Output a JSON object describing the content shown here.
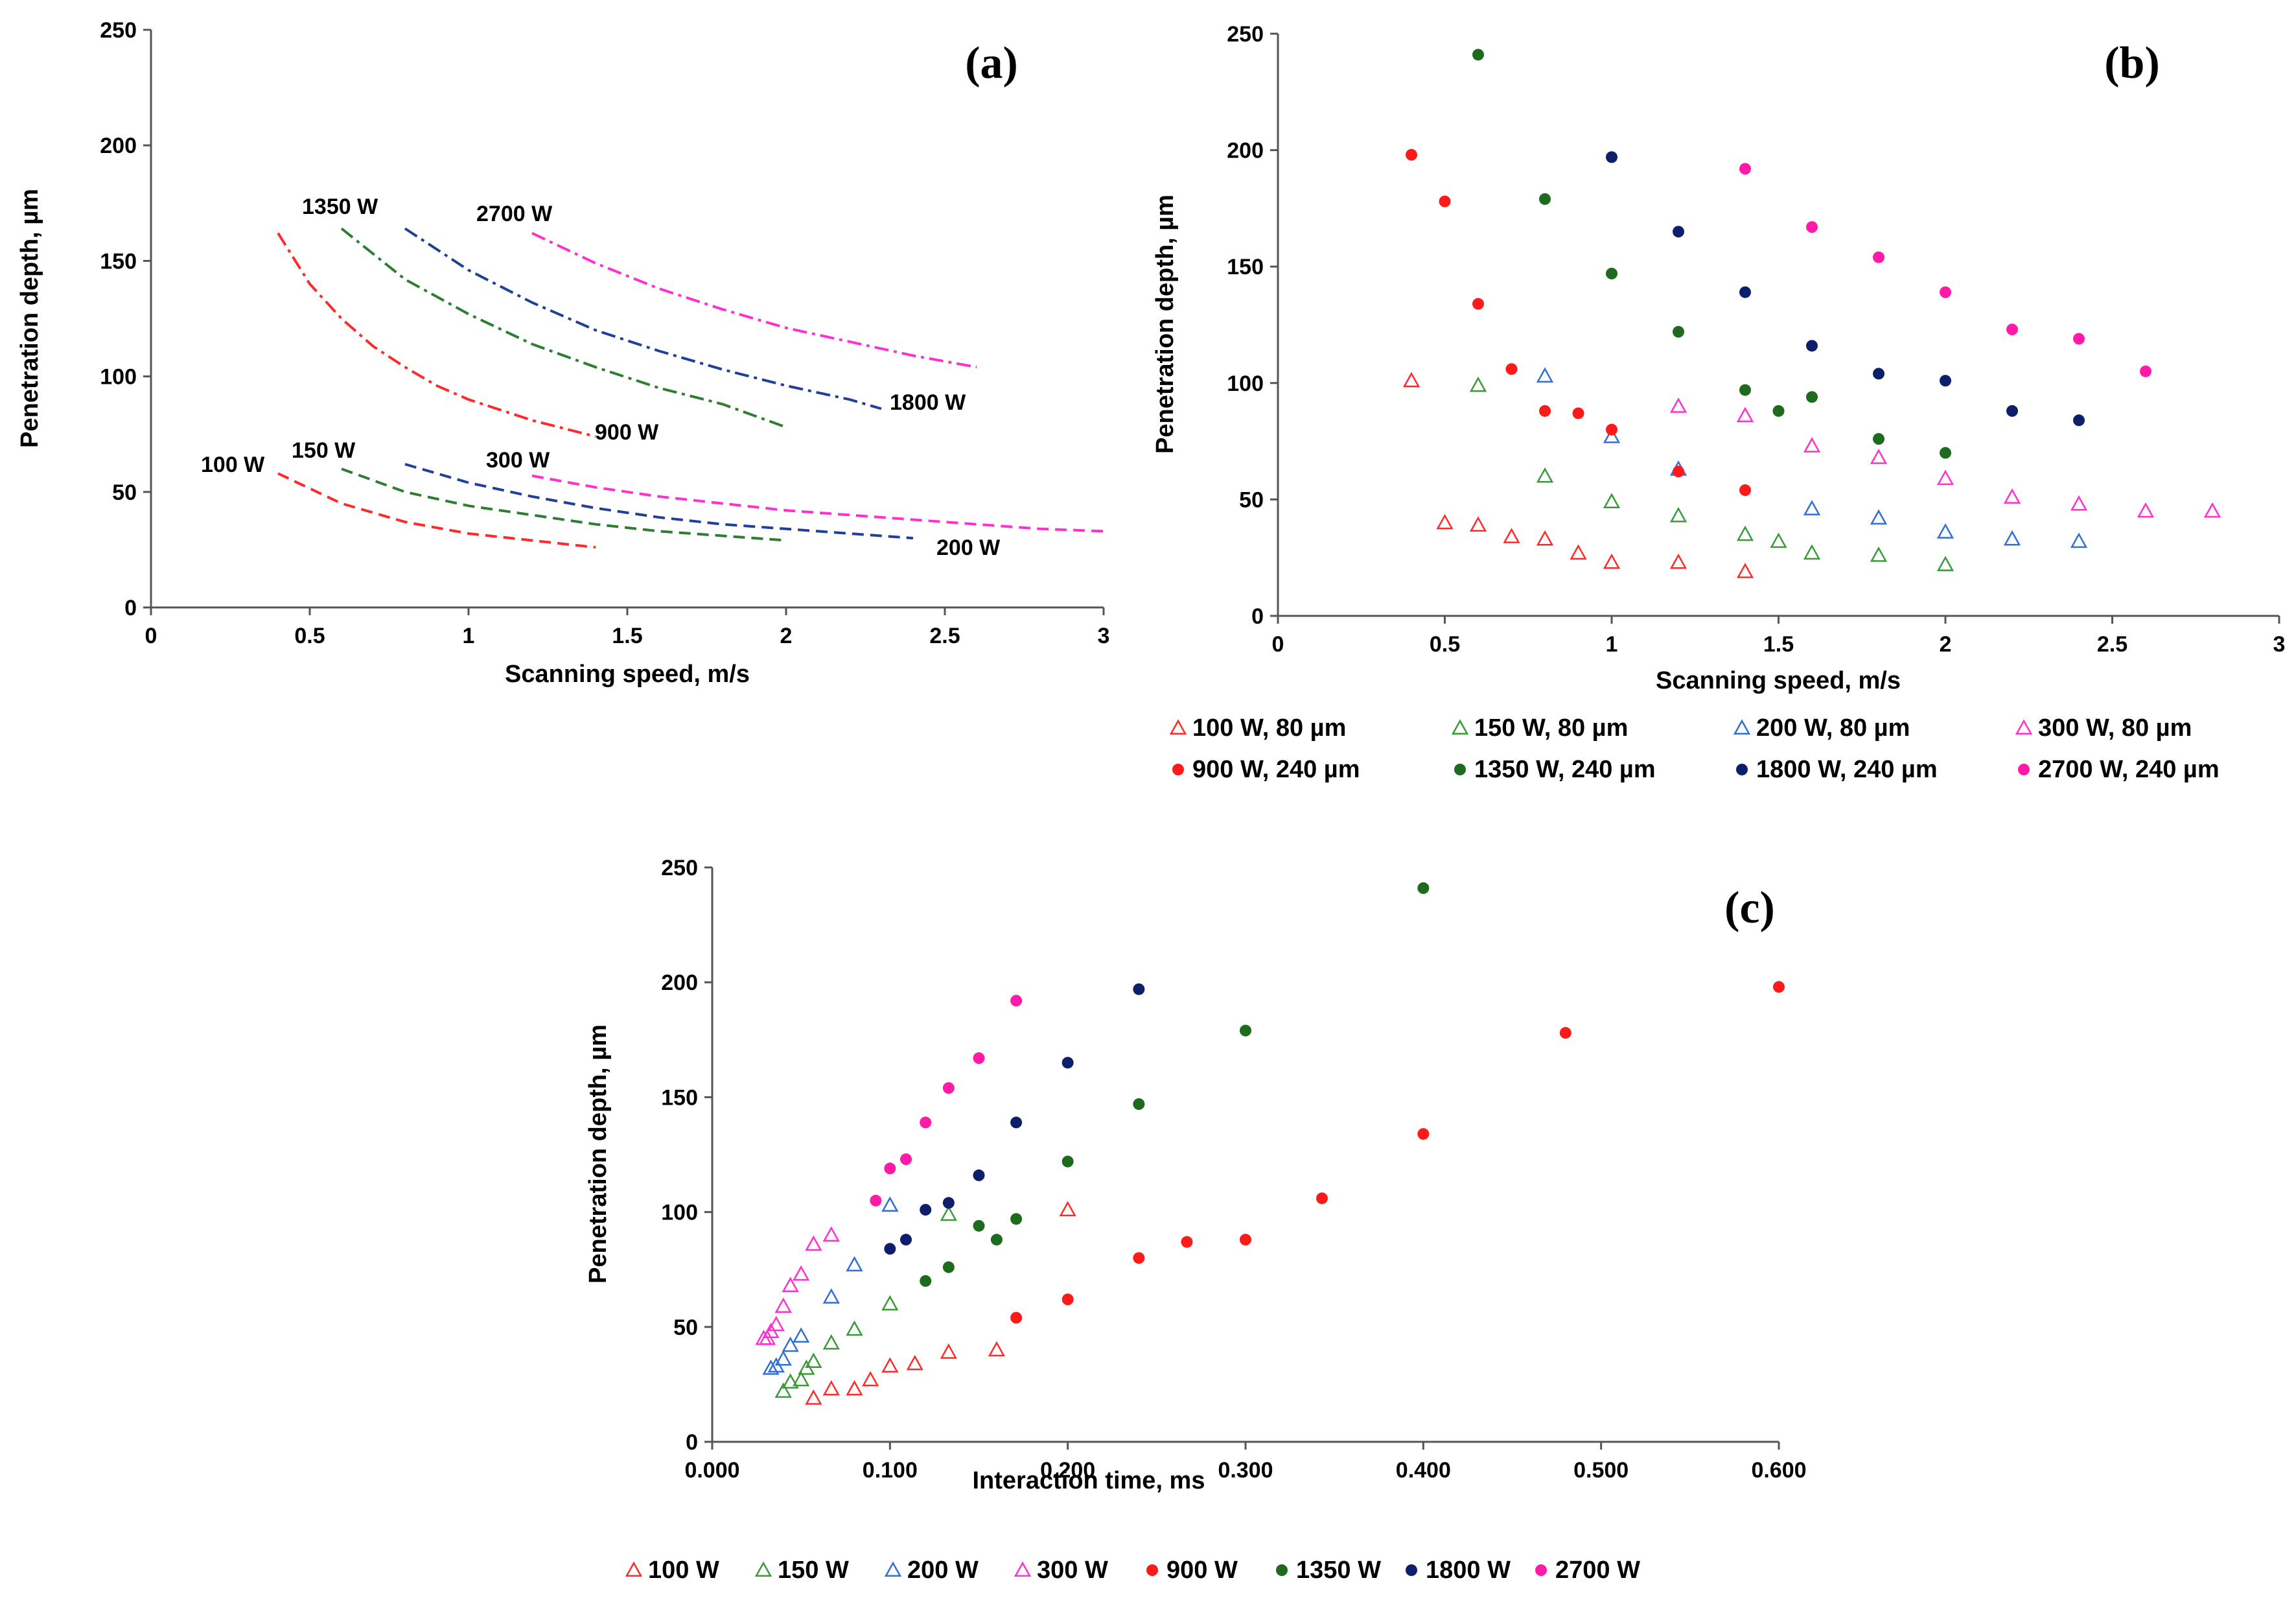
{
  "chart_data": [
    {
      "id": "a",
      "type": "line",
      "panel_label": "(a)",
      "xlabel": "Scanning speed, m/s",
      "ylabel": "Penetration depth, µm",
      "xlim": [
        0,
        3
      ],
      "ylim": [
        0,
        250
      ],
      "xticks": [
        0,
        0.5,
        1,
        1.5,
        2,
        2.5,
        3
      ],
      "xtick_labels": [
        "0",
        "0.5",
        "1",
        "1.5",
        "2",
        "2.5",
        "3"
      ],
      "yticks": [
        0,
        50,
        100,
        150,
        200,
        250
      ],
      "ytick_labels": [
        "0",
        "50",
        "100",
        "150",
        "200",
        "250"
      ],
      "grid": false,
      "series": [
        {
          "name": "100 W",
          "label": "100 W",
          "color": "#ff2a2a",
          "dash": "dash",
          "x": [
            0.4,
            0.6,
            0.8,
            1.0,
            1.2,
            1.4
          ],
          "y": [
            58,
            45,
            37,
            32,
            29,
            26
          ]
        },
        {
          "name": "150 W",
          "label": "150 W",
          "color": "#2e7d32",
          "dash": "dash",
          "x": [
            0.6,
            0.8,
            1.0,
            1.2,
            1.4,
            1.6,
            1.8,
            2.0
          ],
          "y": [
            60,
            50,
            44,
            40,
            36,
            33,
            31,
            29
          ]
        },
        {
          "name": "200 W",
          "label": "200 W",
          "color": "#1f3f99",
          "dash": "dash",
          "x": [
            0.8,
            1.0,
            1.2,
            1.4,
            1.6,
            1.8,
            2.0,
            2.2,
            2.4
          ],
          "y": [
            62,
            54,
            48,
            43,
            39,
            36,
            34,
            32,
            30
          ]
        },
        {
          "name": "300 W",
          "label": "300 W",
          "color": "#ff2fd0",
          "dash": "dash",
          "x": [
            1.2,
            1.4,
            1.6,
            1.8,
            2.0,
            2.2,
            2.4,
            2.6,
            2.8,
            3.0
          ],
          "y": [
            57,
            52,
            48,
            45,
            42,
            40,
            38,
            36,
            34,
            33
          ]
        },
        {
          "name": "900 W",
          "label": "900 W",
          "color": "#ff2a2a",
          "dash": "dashdot",
          "x": [
            0.4,
            0.5,
            0.6,
            0.7,
            0.8,
            0.9,
            1.0,
            1.2,
            1.4
          ],
          "y": [
            162,
            140,
            125,
            113,
            104,
            96,
            90,
            81,
            74
          ]
        },
        {
          "name": "1350 W",
          "label": "1350 W",
          "color": "#2e7d32",
          "dash": "dashdot",
          "x": [
            0.6,
            0.8,
            1.0,
            1.2,
            1.4,
            1.6,
            1.8,
            2.0
          ],
          "y": [
            164,
            142,
            127,
            114,
            104,
            95,
            88,
            78
          ]
        },
        {
          "name": "1800 W",
          "label": "1800 W",
          "color": "#1f3f99",
          "dash": "dashdot",
          "x": [
            0.8,
            1.0,
            1.2,
            1.4,
            1.6,
            1.8,
            2.0,
            2.2,
            2.3
          ],
          "y": [
            164,
            146,
            132,
            120,
            111,
            103,
            96,
            90,
            86
          ]
        },
        {
          "name": "2700 W",
          "label": "2700 W",
          "color": "#ff2fd0",
          "dash": "dashdot",
          "x": [
            1.2,
            1.4,
            1.6,
            1.8,
            2.0,
            2.2,
            2.4,
            2.6
          ],
          "y": [
            162,
            149,
            138,
            129,
            121,
            115,
            109,
            104
          ]
        }
      ]
    },
    {
      "id": "b",
      "type": "scatter",
      "panel_label": "(b)",
      "xlabel": "Scanning speed, m/s",
      "ylabel": "Penetration depth, µm",
      "xlim": [
        0,
        3
      ],
      "ylim": [
        0,
        250
      ],
      "xticks": [
        0,
        0.5,
        1,
        1.5,
        2,
        2.5,
        3
      ],
      "xtick_labels": [
        "0",
        "0.5",
        "1",
        "1.5",
        "2",
        "2.5",
        "3"
      ],
      "yticks": [
        0,
        50,
        100,
        150,
        200,
        250
      ],
      "ytick_labels": [
        "0",
        "50",
        "100",
        "150",
        "200",
        "250"
      ],
      "grid": false,
      "legend_position": "bottom",
      "series": [
        {
          "name": "100 W, 80 µm",
          "marker": "triangle-open",
          "color": "#ff2a2a",
          "x": [
            0.4,
            0.5,
            0.6,
            0.7,
            0.8,
            0.9,
            1.0,
            1.2,
            1.4
          ],
          "y": [
            101,
            40,
            39,
            34,
            33,
            27,
            23,
            23,
            19
          ]
        },
        {
          "name": "150 W, 80 µm",
          "marker": "triangle-open",
          "color": "#3a9a3a",
          "x": [
            0.6,
            0.8,
            1.0,
            1.2,
            1.4,
            1.5,
            1.6,
            1.8,
            2.0
          ],
          "y": [
            99,
            60,
            49,
            43,
            35,
            32,
            27,
            26,
            22
          ]
        },
        {
          "name": "200 W, 80 µm",
          "marker": "triangle-open",
          "color": "#2f6fd6",
          "x": [
            0.8,
            1.0,
            1.2,
            1.6,
            1.8,
            2.0,
            2.2,
            2.4
          ],
          "y": [
            103,
            77,
            63,
            46,
            42,
            36,
            33,
            32
          ]
        },
        {
          "name": "300 W, 80 µm",
          "marker": "triangle-open",
          "color": "#ff2fd0",
          "x": [
            1.2,
            1.4,
            1.6,
            1.8,
            2.0,
            2.2,
            2.4,
            2.6,
            2.8
          ],
          "y": [
            90,
            86,
            73,
            68,
            59,
            51,
            48,
            45,
            45
          ]
        },
        {
          "name": "900 W, 240 µm",
          "marker": "circle",
          "color": "#ff1a1a",
          "x": [
            0.4,
            0.5,
            0.6,
            0.7,
            0.8,
            0.9,
            1.0,
            1.2,
            1.4
          ],
          "y": [
            198,
            178,
            134,
            106,
            88,
            87,
            80,
            62,
            54
          ]
        },
        {
          "name": "1350 W, 240 µm",
          "marker": "circle",
          "color": "#1e6b1e",
          "x": [
            0.6,
            0.8,
            1.0,
            1.2,
            1.4,
            1.5,
            1.6,
            1.8,
            2.0
          ],
          "y": [
            241,
            179,
            147,
            122,
            97,
            88,
            94,
            76,
            70
          ]
        },
        {
          "name": "1800 W, 240 µm",
          "marker": "circle",
          "color": "#0d1f6b",
          "x": [
            1.0,
            1.2,
            1.4,
            1.6,
            1.8,
            2.0,
            2.2,
            2.4
          ],
          "y": [
            197,
            165,
            139,
            116,
            104,
            101,
            88,
            84
          ]
        },
        {
          "name": "2700 W, 240 µm",
          "marker": "circle",
          "color": "#ff1aa8",
          "x": [
            1.4,
            1.6,
            1.8,
            2.0,
            2.2,
            2.4,
            2.6
          ],
          "y": [
            192,
            167,
            154,
            139,
            123,
            119,
            105
          ]
        }
      ]
    },
    {
      "id": "c",
      "type": "scatter",
      "panel_label": "(c)",
      "xlabel": "Interaction time, ms",
      "ylabel": "Penetration depth, µm",
      "xlim": [
        0,
        0.6
      ],
      "ylim": [
        0,
        250
      ],
      "xticks": [
        0,
        0.1,
        0.2,
        0.3,
        0.4,
        0.5,
        0.6
      ],
      "xtick_labels": [
        "0.000",
        "0.100",
        "0.200",
        "0.300",
        "0.400",
        "0.500",
        "0.600"
      ],
      "yticks": [
        0,
        50,
        100,
        150,
        200,
        250
      ],
      "ytick_labels": [
        "0",
        "50",
        "100",
        "150",
        "200",
        "250"
      ],
      "grid": false,
      "legend_position": "bottom",
      "series": [
        {
          "name": "100 W",
          "marker": "triangle-open",
          "color": "#ff2a2a",
          "x": [
            0.2,
            0.16,
            0.133,
            0.114,
            0.1,
            0.089,
            0.08,
            0.067,
            0.057
          ],
          "y": [
            101,
            40,
            39,
            34,
            33,
            27,
            23,
            23,
            19
          ]
        },
        {
          "name": "150 W",
          "marker": "triangle-open",
          "color": "#3a9a3a",
          "x": [
            0.133,
            0.1,
            0.08,
            0.067,
            0.057,
            0.053,
            0.05,
            0.044,
            0.04
          ],
          "y": [
            99,
            60,
            49,
            43,
            35,
            32,
            27,
            26,
            22
          ]
        },
        {
          "name": "200 W",
          "marker": "triangle-open",
          "color": "#2f6fd6",
          "x": [
            0.1,
            0.08,
            0.067,
            0.05,
            0.044,
            0.04,
            0.036,
            0.033
          ],
          "y": [
            103,
            77,
            63,
            46,
            42,
            36,
            33,
            32
          ]
        },
        {
          "name": "300 W",
          "marker": "triangle-open",
          "color": "#ff2fd0",
          "x": [
            0.067,
            0.057,
            0.05,
            0.044,
            0.04,
            0.036,
            0.033,
            0.031,
            0.029
          ],
          "y": [
            90,
            86,
            73,
            68,
            59,
            51,
            48,
            45,
            45
          ]
        },
        {
          "name": "900 W",
          "marker": "circle",
          "color": "#ff1a1a",
          "x": [
            0.6,
            0.48,
            0.4,
            0.343,
            0.3,
            0.267,
            0.24,
            0.2,
            0.171
          ],
          "y": [
            198,
            178,
            134,
            106,
            88,
            87,
            80,
            62,
            54
          ]
        },
        {
          "name": "1350 W",
          "marker": "circle",
          "color": "#1e6b1e",
          "x": [
            0.4,
            0.3,
            0.24,
            0.2,
            0.171,
            0.16,
            0.15,
            0.133,
            0.12
          ],
          "y": [
            241,
            179,
            147,
            122,
            97,
            88,
            94,
            76,
            70
          ]
        },
        {
          "name": "1800 W",
          "marker": "circle",
          "color": "#0d1f6b",
          "x": [
            0.24,
            0.2,
            0.171,
            0.15,
            0.133,
            0.12,
            0.109,
            0.1
          ],
          "y": [
            197,
            165,
            139,
            116,
            104,
            101,
            88,
            84
          ]
        },
        {
          "name": "2700 W",
          "marker": "circle",
          "color": "#ff1aa8",
          "x": [
            0.171,
            0.15,
            0.133,
            0.12,
            0.109,
            0.1,
            0.092
          ],
          "y": [
            192,
            167,
            154,
            139,
            123,
            119,
            105
          ]
        }
      ]
    }
  ]
}
